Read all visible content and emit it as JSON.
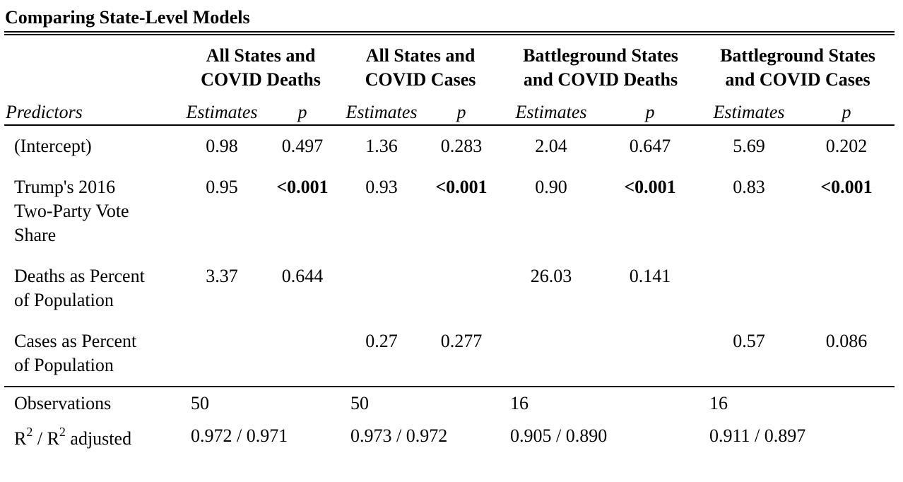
{
  "table": {
    "caption": "Comparing State-Level Models",
    "groups": [
      {
        "line1": "All States and",
        "line2": "COVID Deaths"
      },
      {
        "line1": "All States and",
        "line2": "COVID Cases"
      },
      {
        "line1": "Battleground States",
        "line2": "and COVID Deaths"
      },
      {
        "line1": "Battleground States",
        "line2": "and COVID Cases"
      }
    ],
    "subheaders": {
      "predictors": "Predictors",
      "estimates": "Estimates",
      "p": "p"
    },
    "rows": [
      {
        "label_lines": [
          "(Intercept)"
        ],
        "cells": [
          "0.98",
          "0.497",
          "1.36",
          "0.283",
          "2.04",
          "0.647",
          "5.69",
          "0.202"
        ]
      },
      {
        "label_lines": [
          "Trump's 2016",
          "Two-Party Vote",
          "Share"
        ],
        "cells": [
          "0.95",
          "<0.001",
          "0.93",
          "<0.001",
          "0.90",
          "<0.001",
          "0.83",
          "<0.001"
        ]
      },
      {
        "label_lines": [
          "Deaths as Percent",
          "of Population"
        ],
        "cells": [
          "3.37",
          "0.644",
          "",
          "",
          "26.03",
          "0.141",
          "",
          ""
        ]
      },
      {
        "label_lines": [
          "Cases as Percent",
          "of Population"
        ],
        "cells": [
          "",
          "",
          "0.27",
          "0.277",
          "",
          "",
          "0.57",
          "0.086"
        ]
      }
    ],
    "footer": {
      "observations_label": "Observations",
      "observations": [
        "50",
        "50",
        "16",
        "16"
      ],
      "r2_label_r": "R",
      "r2_label_sup": "2",
      "r2_label_mid": " / R",
      "r2_label_sup2": "2",
      "r2_label_end": " adjusted",
      "r2": [
        "0.972 / 0.971",
        "0.973 / 0.972",
        "0.905 / 0.890",
        "0.911 / 0.897"
      ]
    }
  }
}
